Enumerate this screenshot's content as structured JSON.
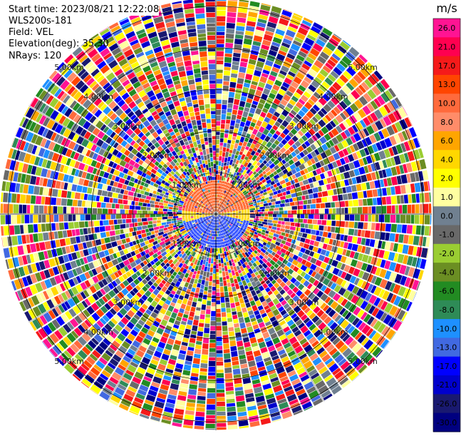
{
  "header": {
    "start_time": "Start time: 2023/08/21 12:22:08",
    "instrument": "WLS200s-181",
    "field": "Field: VEL",
    "elevation": "Elevation(deg): 35.30",
    "nrays": "NRays: 120"
  },
  "chart_data": {
    "type": "heatmap",
    "projection": "polar PPI",
    "field": "VEL",
    "units": "m/s",
    "nrays": 120,
    "elevation_deg": 35.3,
    "range_rings": [
      {
        "label": "1.00km"
      },
      {
        "label": "2.00km"
      },
      {
        "label": "3.00km"
      },
      {
        "label": "4.00km"
      },
      {
        "label": "5.00km"
      }
    ],
    "colorbar": {
      "unit": "m/s",
      "ticks": [
        "26.0",
        "21.0",
        "17.0",
        "13.0",
        "10.0",
        "8.0",
        "6.0",
        "4.0",
        "2.0",
        "1.0",
        "0.0",
        "-1.0",
        "-2.0",
        "-4.0",
        "-6.0",
        "-8.0",
        "-10.0",
        "-13.0",
        "-17.0",
        "-21.0",
        "-26.0",
        "-30.0"
      ],
      "colors": [
        "#ff1493",
        "#ff0050",
        "#f51a1a",
        "#ff4500",
        "#ff6a3c",
        "#ff8c69",
        "#ffa500",
        "#ffd700",
        "#ffff00",
        "#ffffa0",
        "#708090",
        "#696969",
        "#9acd32",
        "#6b8e23",
        "#228b22",
        "#2e8b57",
        "#1e90ff",
        "#4169e1",
        "#0000ff",
        "#0000cd",
        "#191970",
        "#000080"
      ]
    },
    "near_field": {
      "approaching_color": "#ff5a1a",
      "receding_color": "#1e40ff",
      "neutral_color": "#ffd700"
    }
  }
}
